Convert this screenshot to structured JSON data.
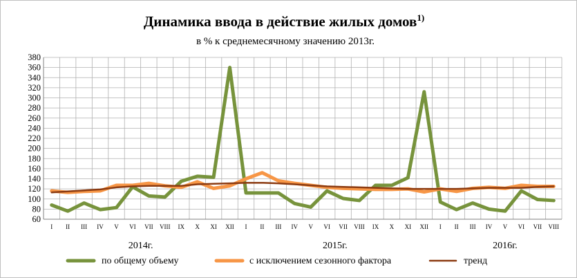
{
  "chart_data": {
    "type": "line",
    "title": "Динамика ввода в действие жилых домов",
    "title_sup": "1)",
    "subtitle": "в % к среднемесячному значению 2013г.",
    "xlabel": "",
    "ylabel": "",
    "ylim": [
      60,
      380
    ],
    "yticks": [
      60,
      80,
      100,
      120,
      140,
      160,
      180,
      200,
      220,
      240,
      260,
      280,
      300,
      320,
      340,
      360,
      380
    ],
    "grid": true,
    "legend_position": "bottom",
    "categories": [
      "I",
      "II",
      "III",
      "IV",
      "V",
      "VI",
      "VII",
      "VIII",
      "IX",
      "X",
      "XI",
      "XII",
      "I",
      "II",
      "III",
      "IV",
      "V",
      "VI",
      "VII",
      "VIII",
      "IX",
      "X",
      "XI",
      "XII",
      "I",
      "II",
      "III",
      "IV",
      "V",
      "VI",
      "VII",
      "VIII"
    ],
    "year_labels": [
      {
        "label": "2014г.",
        "month_index": 5.5
      },
      {
        "label": "2015г.",
        "month_index": 17.5
      },
      {
        "label": "2016г.",
        "month_index": 28
      }
    ],
    "series": [
      {
        "name": "по общему объему",
        "color": "#77933c",
        "values": [
          88,
          76,
          92,
          79,
          83,
          124,
          106,
          104,
          135,
          145,
          143,
          360,
          112,
          112,
          112,
          91,
          84,
          116,
          101,
          97,
          127,
          127,
          142,
          312,
          94,
          79,
          92,
          80,
          76,
          116,
          99,
          97
        ]
      },
      {
        "name": "с исключением сезонного фактора",
        "color": "#f79646",
        "values": [
          116,
          113,
          115,
          116,
          127,
          127,
          131,
          126,
          123,
          134,
          121,
          126,
          140,
          152,
          136,
          131,
          127,
          123,
          121,
          120,
          119,
          119,
          120,
          114,
          120,
          115,
          121,
          123,
          121,
          127,
          125,
          125
        ]
      },
      {
        "name": "тренд",
        "color": "#8b3a10",
        "values": [
          113,
          115,
          117,
          119,
          123,
          125,
          126,
          126,
          126,
          129,
          130,
          131,
          132,
          132,
          131,
          129,
          127,
          125,
          124,
          123,
          122,
          121,
          120,
          120,
          120,
          120,
          121,
          122,
          122,
          122,
          124,
          125
        ]
      }
    ]
  }
}
